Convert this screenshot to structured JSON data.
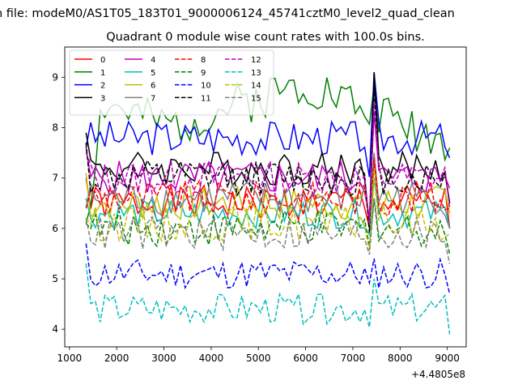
{
  "figure": {
    "suptitle": "n file: modeM0/AS1T05_183T01_9000006124_45741cztM0_level2_quad_clean",
    "offset_label": "+4.4805e8"
  },
  "chart_data": {
    "type": "line",
    "title": "Quadrant 0 module wise count rates with 100.0s bins.",
    "xlabel": "",
    "ylabel": "",
    "xlim": [
      900,
      9400
    ],
    "ylim": [
      3.65,
      9.6
    ],
    "x_ticks": [
      1000,
      2000,
      3000,
      4000,
      5000,
      6000,
      7000,
      8000,
      9000
    ],
    "y_ticks": [
      4,
      5,
      6,
      7,
      8,
      9
    ],
    "x_start": 1350,
    "x_step": 100,
    "num_points": 78,
    "grid": false,
    "legend": {
      "placement": "top-left",
      "columns": 4
    },
    "series": [
      {
        "name": "0",
        "color": "#ff0000",
        "dash": "solid",
        "base": 6.5,
        "amp": 0.35,
        "seed": 1,
        "start": 7.0,
        "end": 6.0,
        "spike": 0.8
      },
      {
        "name": "1",
        "color": "#008000",
        "dash": "solid",
        "base": 8.3,
        "amp": 0.45,
        "seed": 2,
        "start": 6.1,
        "end": 7.6,
        "spike": 0.5,
        "ramp": [
          [
            1350,
            6.1
          ],
          [
            1700,
            8.5
          ],
          [
            3000,
            8.0
          ],
          [
            5000,
            8.6
          ],
          [
            6000,
            8.9
          ],
          [
            9050,
            7.7
          ]
        ]
      },
      {
        "name": "2",
        "color": "#0000ff",
        "dash": "solid",
        "base": 7.8,
        "amp": 0.35,
        "seed": 3,
        "start": 7.6,
        "end": 7.4,
        "spike": 1.3
      },
      {
        "name": "3",
        "color": "#000000",
        "dash": "solid",
        "base": 7.2,
        "amp": 0.35,
        "seed": 4,
        "start": 7.9,
        "end": 6.5,
        "spike": 1.9
      },
      {
        "name": "4",
        "color": "#bf00bf",
        "dash": "solid",
        "base": 7.0,
        "amp": 0.35,
        "seed": 5,
        "start": 7.6,
        "end": 6.8,
        "spike": 1.3
      },
      {
        "name": "5",
        "color": "#00bfbf",
        "dash": "solid",
        "base": 6.3,
        "amp": 0.3,
        "seed": 6,
        "start": 6.6,
        "end": 6.0,
        "spike": 0.7
      },
      {
        "name": "6",
        "color": "#bfbf00",
        "dash": "solid",
        "base": 6.5,
        "amp": 0.35,
        "seed": 7,
        "start": 7.1,
        "end": 6.3,
        "spike": 0.7
      },
      {
        "name": "7",
        "color": "#808080",
        "dash": "solid",
        "base": 6.6,
        "amp": 0.35,
        "seed": 8,
        "start": 6.4,
        "end": 6.0,
        "spike": 0.9
      },
      {
        "name": "8",
        "color": "#ff0000",
        "dash": "dashed",
        "base": 6.6,
        "amp": 0.35,
        "seed": 9,
        "start": 6.4,
        "end": 6.4,
        "spike": 0.8
      },
      {
        "name": "9",
        "color": "#008000",
        "dash": "dashed",
        "base": 6.0,
        "amp": 0.35,
        "seed": 10,
        "start": 6.1,
        "end": 5.5,
        "spike": 0.6
      },
      {
        "name": "10",
        "color": "#0000ff",
        "dash": "dashed",
        "base": 5.1,
        "amp": 0.3,
        "seed": 11,
        "start": 5.7,
        "end": 4.7,
        "spike": 0.3
      },
      {
        "name": "11",
        "color": "#000000",
        "dash": "dashed",
        "base": 7.0,
        "amp": 0.35,
        "seed": 12,
        "start": 7.7,
        "end": 6.5,
        "spike": 1.8
      },
      {
        "name": "12",
        "color": "#bf00bf",
        "dash": "dashed",
        "base": 7.0,
        "amp": 0.35,
        "seed": 13,
        "start": 7.5,
        "end": 6.4,
        "spike": 1.5
      },
      {
        "name": "13",
        "color": "#00bfbf",
        "dash": "dashed",
        "base": 4.4,
        "amp": 0.3,
        "seed": 14,
        "start": 5.3,
        "end": 3.9,
        "spike": 0.6
      },
      {
        "name": "14",
        "color": "#bfbf00",
        "dash": "dashed",
        "base": 6.1,
        "amp": 0.35,
        "seed": 15,
        "start": 6.2,
        "end": 5.9,
        "spike": 0.9
      },
      {
        "name": "15",
        "color": "#808080",
        "dash": "dashed",
        "base": 5.9,
        "amp": 0.35,
        "seed": 16,
        "start": 6.2,
        "end": 5.3,
        "spike": 0.7
      }
    ]
  }
}
